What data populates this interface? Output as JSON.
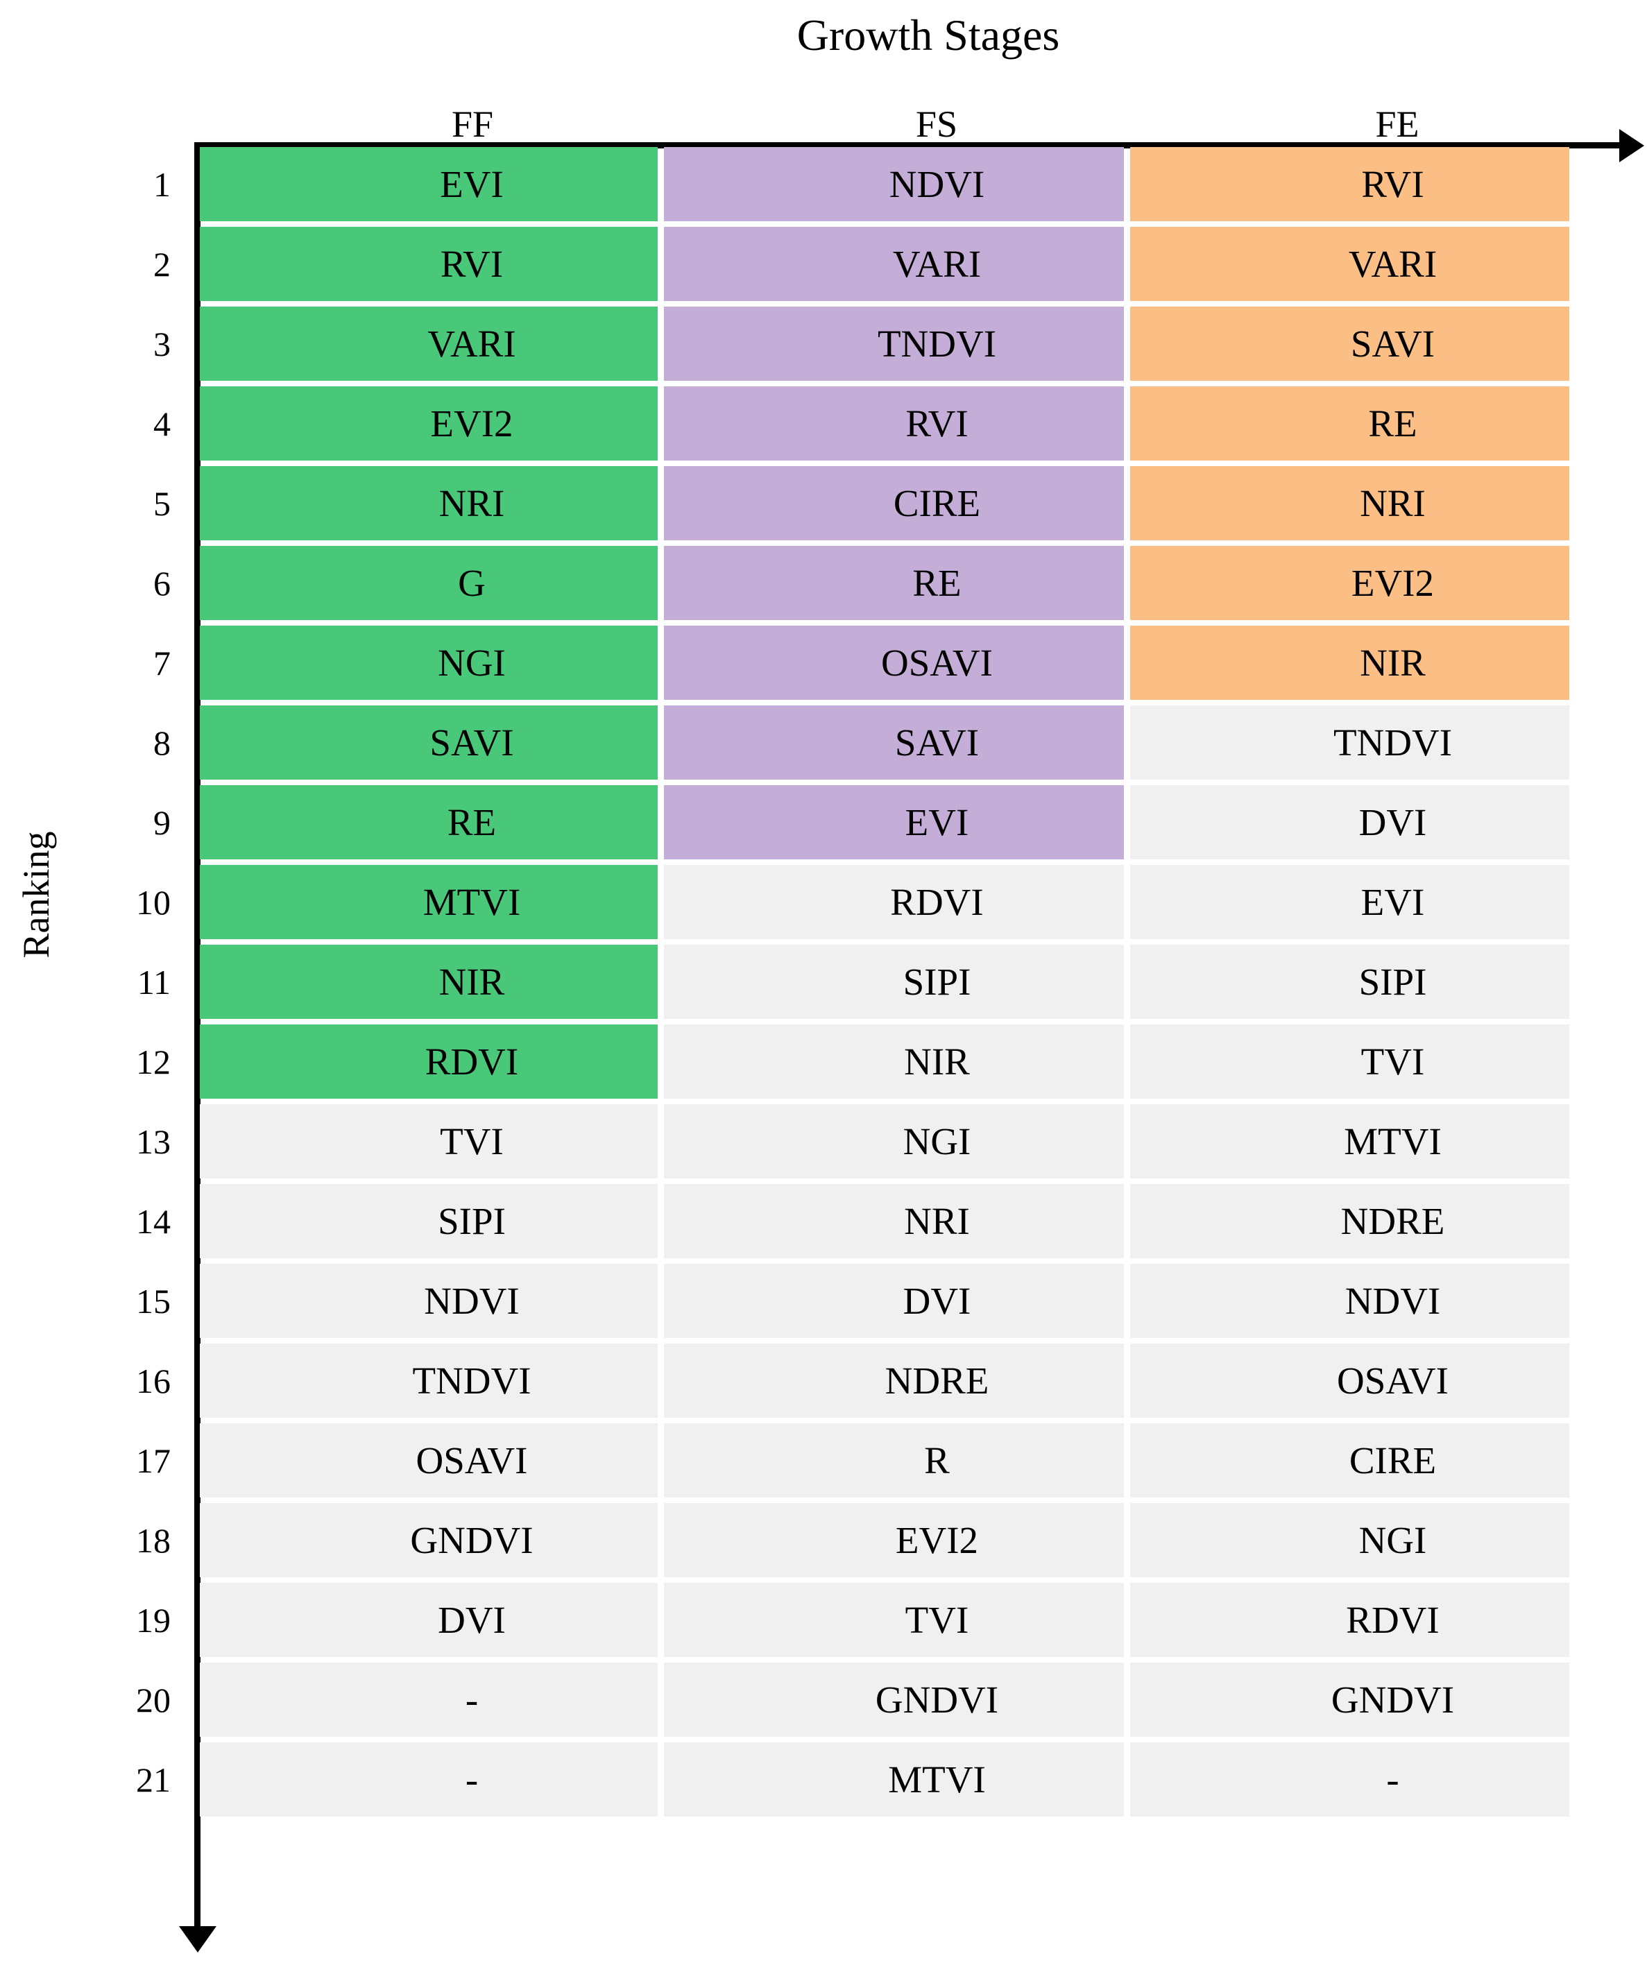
{
  "title": "Growth Stages",
  "y_axis_label": "Ranking",
  "chart_data": {
    "type": "table",
    "title": "Growth Stages",
    "xlabel": "Growth Stages",
    "ylabel": "Ranking",
    "ranks": [
      1,
      2,
      3,
      4,
      5,
      6,
      7,
      8,
      9,
      10,
      11,
      12,
      13,
      14,
      15,
      16,
      17,
      18,
      19,
      20,
      21
    ],
    "default_cell_color": "#F0F0F0",
    "axis_color": "#000000",
    "text_color": "#000000",
    "columns": [
      {
        "label": "FF",
        "highlight_color": "#48C878",
        "highlighted_top_n": 12,
        "values": [
          "EVI",
          "RVI",
          "VARI",
          "EVI2",
          "NRI",
          "G",
          "NGI",
          "SAVI",
          "RE",
          "MTVI",
          "NIR",
          "RDVI",
          "TVI",
          "SIPI",
          "NDVI",
          "TNDVI",
          "OSAVI",
          "GNDVI",
          "DVI",
          "-",
          "-"
        ]
      },
      {
        "label": "FS",
        "highlight_color": "#C4AED8",
        "highlighted_top_n": 9,
        "values": [
          "NDVI",
          "VARI",
          "TNDVI",
          "RVI",
          "CIRE",
          "RE",
          "OSAVI",
          "SAVI",
          "EVI",
          "RDVI",
          "SIPI",
          "NIR",
          "NGI",
          "NRI",
          "DVI",
          "NDRE",
          "R",
          "EVI2",
          "TVI",
          "GNDVI",
          "MTVI"
        ]
      },
      {
        "label": "FE",
        "highlight_color": "#FBBE85",
        "highlighted_top_n": 7,
        "values": [
          "RVI",
          "VARI",
          "SAVI",
          "RE",
          "NRI",
          "EVI2",
          "NIR",
          "TNDVI",
          "DVI",
          "EVI",
          "SIPI",
          "TVI",
          "MTVI",
          "NDRE",
          "NDVI",
          "OSAVI",
          "CIRE",
          "NGI",
          "RDVI",
          "GNDVI",
          "-"
        ]
      }
    ]
  }
}
